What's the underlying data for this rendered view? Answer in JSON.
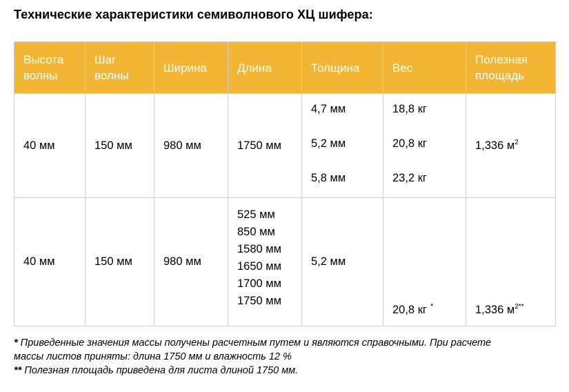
{
  "title": "Технические характеристики семиволнового ХЦ шифера:",
  "table": {
    "headers": {
      "wave_height_1": "Высота",
      "wave_height_2": "волны",
      "wave_step_1": "Шаг",
      "wave_step_2": "волны",
      "width": "Ширина",
      "length": "Длина",
      "thickness": "Толщина",
      "weight": "Вес",
      "area_1": "Полезная",
      "area_2": "площадь"
    },
    "row1": {
      "wave_height": "40 мм",
      "wave_step": "150 мм",
      "width": "980 мм",
      "length": "1750 мм",
      "thickness": [
        "4,7 мм",
        "5,2 мм",
        "5,8 мм"
      ],
      "weight": [
        "18,8 кг",
        "20,8 кг",
        "23,2 кг"
      ],
      "area": "1,336 м",
      "area_sup": "2"
    },
    "row2": {
      "wave_height": "40 мм",
      "wave_step": "150 мм",
      "width": "980 мм",
      "length": [
        "525 мм",
        "850 мм",
        "1580 мм",
        "1650 мм",
        "1700 мм",
        "1750 мм"
      ],
      "thickness": "5,2 мм",
      "weight": "20,8 кг",
      "weight_mark": "*",
      "area": "1,336 м",
      "area_sup": "2**"
    }
  },
  "footnotes": {
    "note1_mark": "*",
    "note1_line1": " Приведенные значения массы получены расчетным путем и являются справочными. При расчете",
    "note1_line2": "массы листов приняты: длина 1750 мм и влажность 12 %",
    "note2_mark": "**",
    "note2_text": " Полезная площадь приведена для листа длиной 1750 мм."
  }
}
